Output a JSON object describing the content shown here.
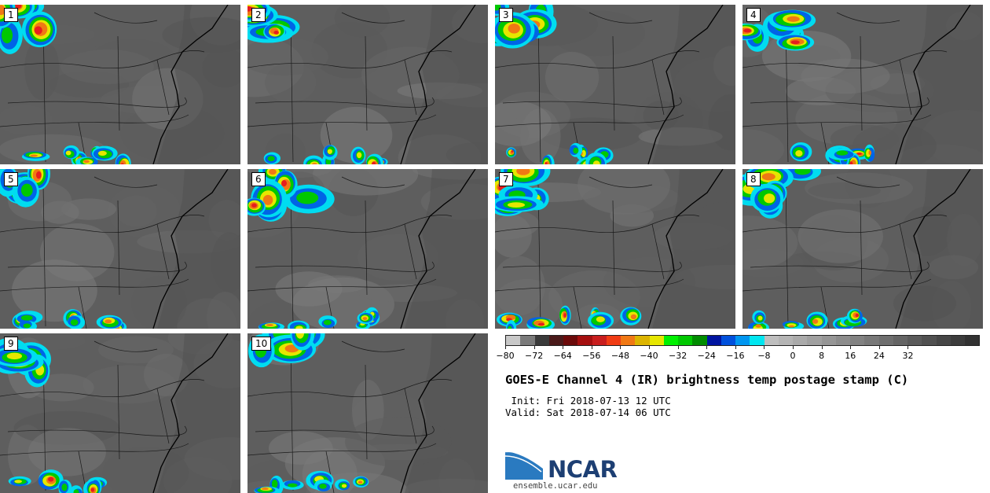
{
  "panels": [
    {
      "label": "1"
    },
    {
      "label": "2"
    },
    {
      "label": "3"
    },
    {
      "label": "4"
    },
    {
      "label": "5"
    },
    {
      "label": "6"
    },
    {
      "label": "7"
    },
    {
      "label": "8"
    },
    {
      "label": "9"
    },
    {
      "label": "10"
    }
  ],
  "colorbar": {
    "colors": [
      "#c8c8c8",
      "#7a7a7a",
      "#3a3a3a",
      "#4a1a1a",
      "#6b0a0a",
      "#a50f0f",
      "#c81e1e",
      "#f03c14",
      "#f07814",
      "#dcb400",
      "#e6e600",
      "#00f000",
      "#00c800",
      "#008c00",
      "#0014a0",
      "#0050dc",
      "#0096f0",
      "#00e6f0",
      "#bebebe",
      "#b4b4b4",
      "#aaaaaa",
      "#a0a0a0",
      "#969696",
      "#8c8c8c",
      "#828282",
      "#787878",
      "#6e6e6e",
      "#646464",
      "#5a5a5a",
      "#505050",
      "#464646",
      "#3c3c3c",
      "#323232"
    ],
    "tick_labels": [
      "−80",
      "−72",
      "−64",
      "−56",
      "−48",
      "−40",
      "−32",
      "−24",
      "−16",
      "−8",
      "0",
      "8",
      "16",
      "24",
      "32"
    ]
  },
  "title": "GOES-E Channel 4 (IR) brightness temp postage stamp (C)",
  "init": " Init: Fri 2018-07-13 12 UTC",
  "valid": "Valid: Sat 2018-07-14 06 UTC",
  "logo": {
    "name": "NCAR",
    "url_text": "ensemble.ucar.edu",
    "brand_color": "#1d3f73",
    "accent": "#2a7ac0"
  }
}
